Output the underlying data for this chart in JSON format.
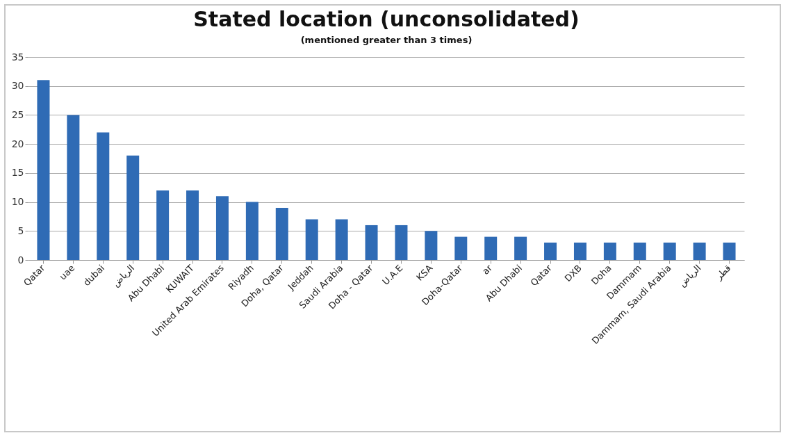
{
  "chart_data": {
    "type": "bar",
    "title": "Stated location (unconsolidated)",
    "subtitle": "(mentioned greater than 3 times)",
    "categories": [
      "Qatar",
      "uae",
      "dubai",
      "الرياض",
      "Abu Dhabi",
      "KUWAIT",
      "United Arab Emirates",
      "Riyadh",
      "Doha, Qatar",
      "Jeddah",
      "Saudi Arabia",
      "Doha - Qatar",
      "U.A.E",
      "KSA",
      "Doha-Qatar",
      "ar",
      "Abu Dhabi",
      "Qatar",
      "DXB",
      "Doha",
      "Dammam",
      "Dammam, Saudi Arabia",
      "الرياض",
      "قطر"
    ],
    "values": [
      31,
      25,
      22,
      18,
      12,
      12,
      11,
      10,
      9,
      7,
      7,
      6,
      6,
      5,
      4,
      4,
      4,
      3,
      3,
      3,
      3,
      3,
      3,
      3
    ],
    "color": "#2f6bb5",
    "ylim": [
      0,
      35
    ],
    "yticks": [
      0,
      5,
      10,
      15,
      20,
      25,
      30,
      35
    ],
    "grid": "y"
  }
}
